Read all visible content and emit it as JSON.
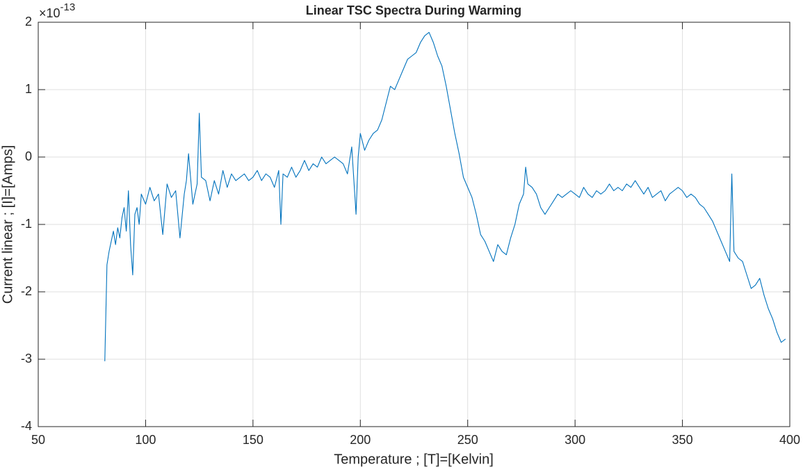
{
  "chart_data": {
    "type": "line",
    "title": "Linear TSC Spectra During Warming",
    "x_label": "Temperature ; [T]=[Kelvin]",
    "y_label": "Current linear ; [I]=[Amps]",
    "y_multiplier": {
      "base": "×10",
      "exponent": "-13"
    },
    "xlim": [
      50,
      400
    ],
    "xticks": [
      50,
      100,
      150,
      200,
      250,
      300,
      350,
      400
    ],
    "ylim": [
      -4,
      2
    ],
    "yticks": [
      -4,
      -3,
      -2,
      -1,
      0,
      1,
      2
    ],
    "grid": true,
    "x": [
      81,
      82,
      83,
      84,
      85,
      86,
      87,
      88,
      89,
      90,
      91,
      92,
      93,
      94,
      95,
      96,
      97,
      98,
      100,
      102,
      104,
      106,
      108,
      110,
      112,
      114,
      116,
      118,
      119,
      120,
      122,
      124,
      125,
      126,
      128,
      130,
      132,
      134,
      136,
      138,
      140,
      142,
      144,
      146,
      148,
      150,
      152,
      154,
      156,
      158,
      160,
      162,
      163,
      164,
      166,
      168,
      170,
      172,
      174,
      176,
      178,
      180,
      182,
      184,
      186,
      188,
      190,
      192,
      194,
      196,
      198,
      199,
      200,
      202,
      204,
      206,
      208,
      210,
      212,
      214,
      216,
      218,
      220,
      222,
      224,
      226,
      228,
      230,
      232,
      234,
      236,
      238,
      240,
      242,
      244,
      246,
      248,
      250,
      252,
      254,
      256,
      258,
      260,
      262,
      264,
      266,
      268,
      270,
      272,
      274,
      276,
      277,
      278,
      280,
      282,
      284,
      286,
      288,
      290,
      292,
      294,
      296,
      298,
      300,
      302,
      304,
      306,
      308,
      310,
      312,
      314,
      316,
      318,
      320,
      322,
      324,
      326,
      328,
      330,
      332,
      334,
      336,
      338,
      340,
      342,
      344,
      346,
      348,
      350,
      352,
      354,
      356,
      358,
      360,
      362,
      364,
      366,
      368,
      370,
      372,
      373,
      374,
      376,
      378,
      380,
      382,
      384,
      386,
      388,
      390,
      392,
      394,
      396,
      398
    ],
    "series": [
      {
        "name": "Current",
        "color": "#0072bd",
        "values": [
          -3.03,
          -1.6,
          -1.4,
          -1.25,
          -1.1,
          -1.3,
          -1.05,
          -1.2,
          -0.9,
          -0.75,
          -1.1,
          -0.5,
          -1.3,
          -1.75,
          -0.85,
          -0.75,
          -1.0,
          -0.55,
          -0.7,
          -0.45,
          -0.65,
          -0.55,
          -1.15,
          -0.4,
          -0.6,
          -0.5,
          -1.2,
          -0.55,
          -0.35,
          0.05,
          -0.7,
          -0.4,
          0.65,
          -0.3,
          -0.35,
          -0.65,
          -0.35,
          -0.55,
          -0.2,
          -0.45,
          -0.25,
          -0.35,
          -0.3,
          -0.25,
          -0.35,
          -0.3,
          -0.2,
          -0.35,
          -0.25,
          -0.3,
          -0.45,
          -0.2,
          -1.0,
          -0.25,
          -0.3,
          -0.15,
          -0.3,
          -0.2,
          -0.05,
          -0.2,
          -0.1,
          -0.15,
          0.0,
          -0.1,
          -0.05,
          0.0,
          -0.05,
          -0.1,
          -0.25,
          0.15,
          -0.85,
          0.0,
          0.35,
          0.1,
          0.25,
          0.35,
          0.4,
          0.55,
          0.8,
          1.05,
          1.0,
          1.15,
          1.3,
          1.45,
          1.5,
          1.55,
          1.7,
          1.8,
          1.85,
          1.7,
          1.5,
          1.35,
          1.05,
          0.7,
          0.35,
          0.05,
          -0.3,
          -0.45,
          -0.6,
          -0.85,
          -1.15,
          -1.25,
          -1.4,
          -1.55,
          -1.3,
          -1.4,
          -1.45,
          -1.2,
          -1.0,
          -0.7,
          -0.55,
          -0.15,
          -0.4,
          -0.45,
          -0.55,
          -0.75,
          -0.85,
          -0.75,
          -0.65,
          -0.55,
          -0.6,
          -0.55,
          -0.5,
          -0.55,
          -0.6,
          -0.45,
          -0.55,
          -0.6,
          -0.5,
          -0.55,
          -0.5,
          -0.4,
          -0.5,
          -0.45,
          -0.5,
          -0.4,
          -0.45,
          -0.35,
          -0.45,
          -0.55,
          -0.45,
          -0.6,
          -0.55,
          -0.5,
          -0.65,
          -0.55,
          -0.5,
          -0.45,
          -0.5,
          -0.6,
          -0.55,
          -0.6,
          -0.7,
          -0.75,
          -0.85,
          -0.95,
          -1.1,
          -1.25,
          -1.4,
          -1.55,
          -0.25,
          -1.4,
          -1.5,
          -1.55,
          -1.75,
          -1.95,
          -1.9,
          -1.8,
          -2.05,
          -2.25,
          -2.4,
          -2.6,
          -2.75,
          -2.7
        ]
      }
    ]
  }
}
